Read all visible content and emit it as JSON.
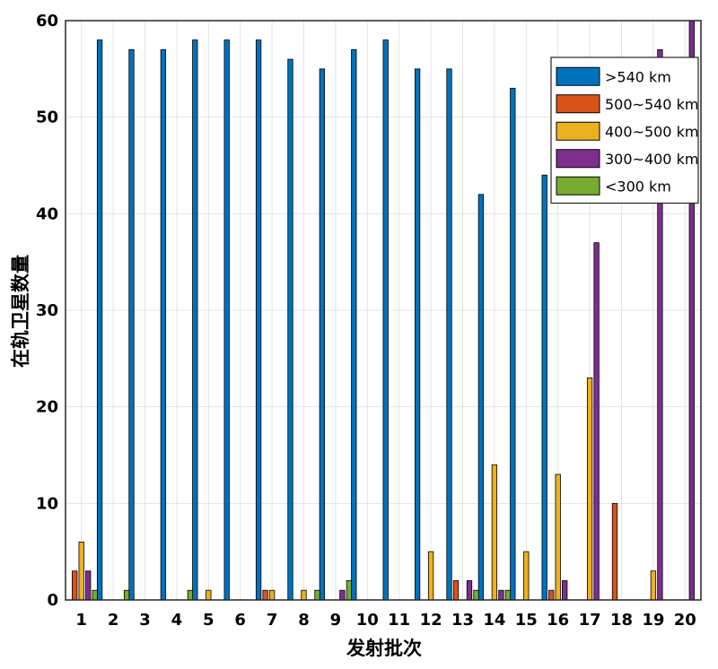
{
  "chart_data": {
    "type": "bar",
    "title": "",
    "xlabel": "发射批次",
    "ylabel": "在轨卫星数量",
    "ylim": [
      0,
      60
    ],
    "yticks": [
      0,
      10,
      20,
      30,
      40,
      50,
      60
    ],
    "grid": true,
    "legend_position": "top-right",
    "categories": [
      "1",
      "2",
      "3",
      "4",
      "5",
      "6",
      "7",
      "8",
      "9",
      "10",
      "11",
      "12",
      "13",
      "14",
      "15",
      "16",
      "17",
      "18",
      "19",
      "20"
    ],
    "series": [
      {
        "name": ">540 km",
        "color": "#0072BD",
        "values": [
          0,
          58,
          57,
          57,
          58,
          58,
          58,
          56,
          55,
          57,
          58,
          55,
          55,
          42,
          53,
          44,
          0,
          0,
          0,
          0
        ]
      },
      {
        "name": "500~540 km",
        "color": "#D95319",
        "values": [
          3,
          0,
          0,
          0,
          0,
          0,
          1,
          0,
          0,
          0,
          0,
          0,
          2,
          0,
          0,
          1,
          0,
          10,
          0,
          0
        ]
      },
      {
        "name": "400~500 km",
        "color": "#EDB120",
        "values": [
          6,
          0,
          0,
          0,
          1,
          0,
          1,
          1,
          0,
          0,
          0,
          5,
          0,
          14,
          5,
          13,
          23,
          0,
          3,
          0
        ]
      },
      {
        "name": "300~400 km",
        "color": "#7E2F8E",
        "values": [
          3,
          0,
          0,
          0,
          0,
          0,
          0,
          0,
          1,
          0,
          0,
          0,
          2,
          1,
          0,
          2,
          37,
          0,
          57,
          60
        ]
      },
      {
        "name": "<300 km",
        "color": "#77AC30",
        "values": [
          1,
          1,
          0,
          1,
          0,
          0,
          0,
          1,
          2,
          0,
          0,
          0,
          1,
          1,
          0,
          0,
          0,
          0,
          0,
          0
        ]
      }
    ]
  }
}
